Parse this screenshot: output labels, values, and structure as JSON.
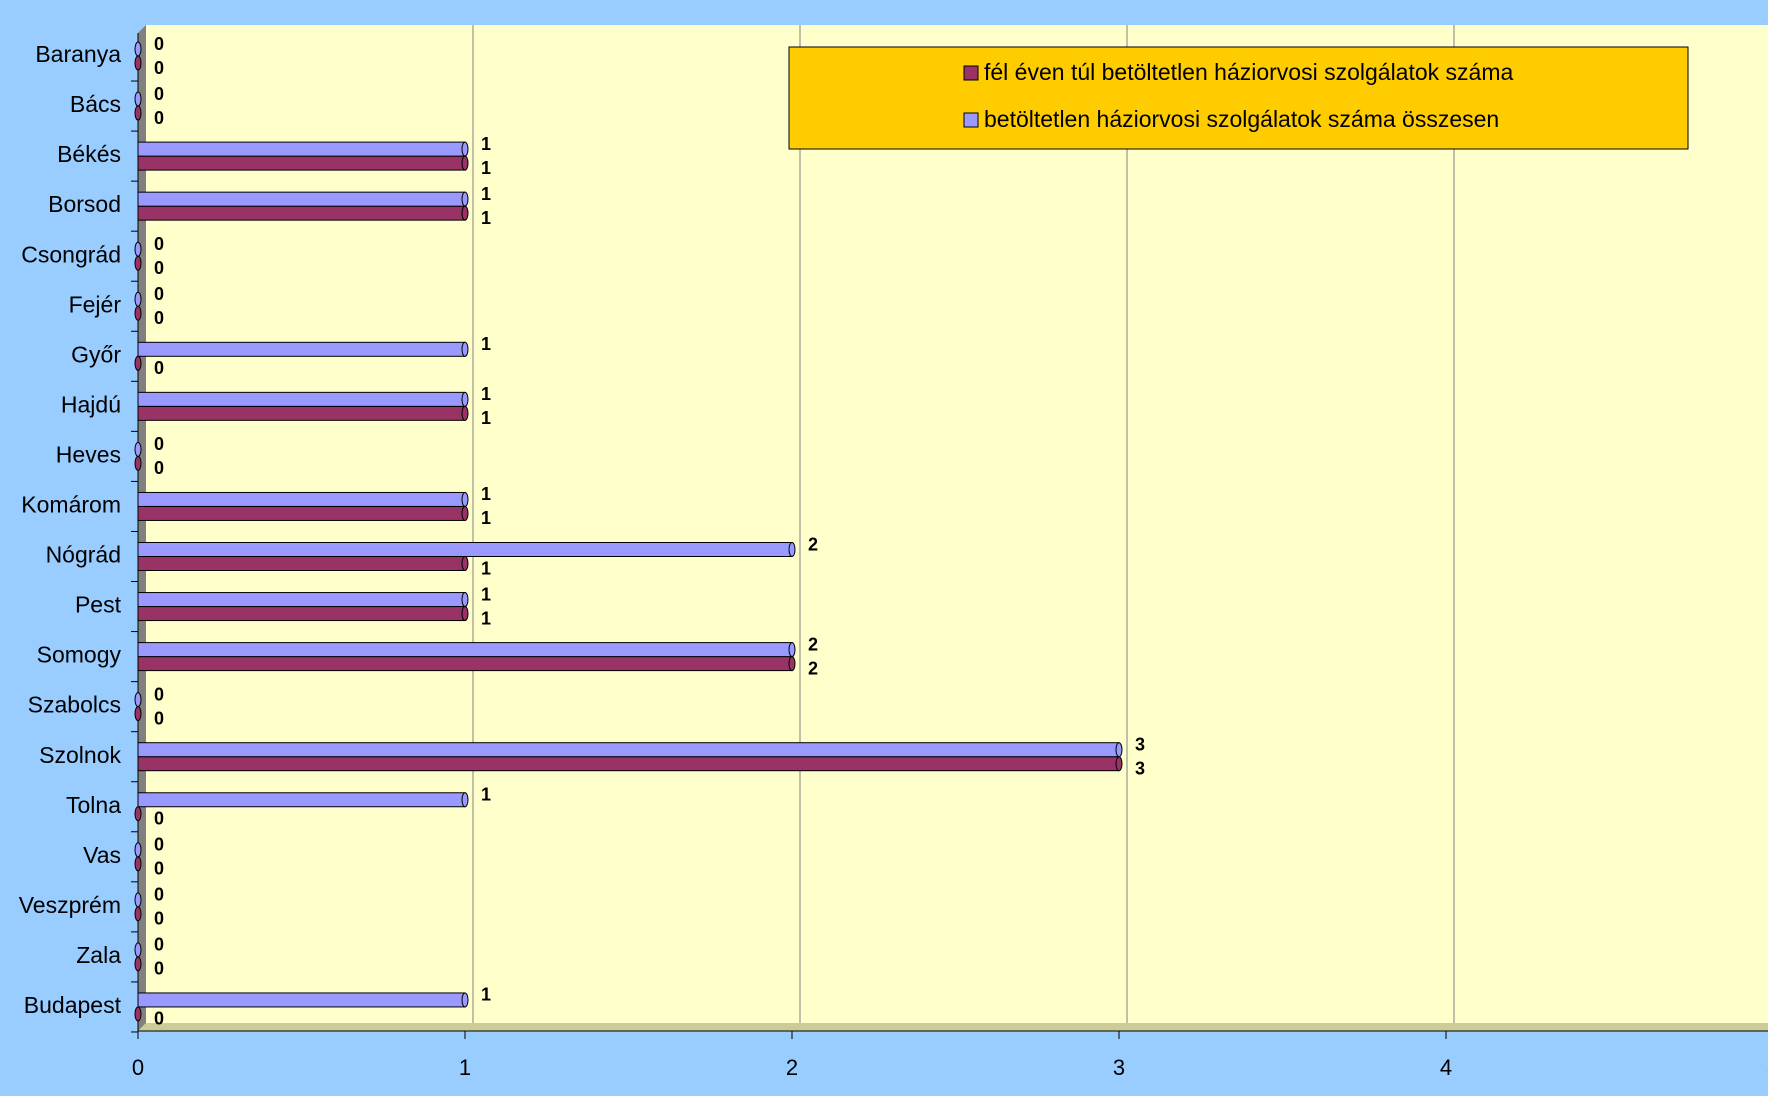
{
  "chart_data": {
    "type": "bar",
    "orientation": "horizontal",
    "categories": [
      "Baranya",
      "Bács",
      "Békés",
      "Borsod",
      "Csongrád",
      "Fejér",
      "Győr",
      "Hajdú",
      "Heves",
      "Komárom",
      "Nógrád",
      "Pest",
      "Somogy",
      "Szabolcs",
      "Szolnok",
      "Tolna",
      "Vas",
      "Veszprém",
      "Zala",
      "Budapest"
    ],
    "series": [
      {
        "name": "fél éven túl betöltetlen háziorvosi szolgálatok száma",
        "color": "#993366",
        "values": [
          0,
          0,
          1,
          1,
          0,
          0,
          0,
          1,
          0,
          1,
          1,
          1,
          2,
          0,
          3,
          0,
          0,
          0,
          0,
          0
        ]
      },
      {
        "name": "betöltetlen háziorvosi szolgálatok száma összesen",
        "color": "#9999ff",
        "values": [
          0,
          0,
          1,
          1,
          0,
          0,
          1,
          1,
          0,
          1,
          2,
          1,
          2,
          0,
          3,
          1,
          0,
          0,
          0,
          1
        ]
      }
    ],
    "xlim": [
      0,
      5
    ],
    "xticks": [
      0,
      1,
      2,
      3,
      4,
      5
    ],
    "grid": true,
    "legend": "top-right"
  }
}
